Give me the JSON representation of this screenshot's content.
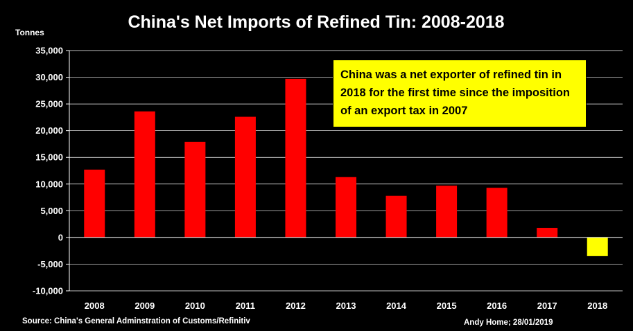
{
  "chart_data": {
    "type": "bar",
    "title": "China's Net Imports of Refined Tin: 2008-2018",
    "ylabel": "Tonnes",
    "xlabel": "",
    "categories": [
      "2008",
      "2009",
      "2010",
      "2011",
      "2012",
      "2013",
      "2014",
      "2015",
      "2016",
      "2017",
      "2018"
    ],
    "values": [
      12700,
      23600,
      17900,
      22600,
      29700,
      11300,
      7800,
      9700,
      9300,
      1800,
      -3500
    ],
    "ylim": [
      -10000,
      35000
    ],
    "yticks": [
      -10000,
      -5000,
      0,
      5000,
      10000,
      15000,
      20000,
      25000,
      30000,
      35000
    ],
    "ytick_labels": [
      "-10,000",
      "-5,000",
      "0",
      "5,000",
      "10,000",
      "15,000",
      "20,000",
      "25,000",
      "30,000",
      "35,000"
    ],
    "grid": true,
    "colors": {
      "positive": "#ff0000",
      "negative": "#ffff00",
      "background": "#000000",
      "grid": "#ffffff"
    },
    "annotation": "China was a net exporter of refined tin in 2018 for the first time since the imposition of an export tax in 2007"
  },
  "footer": {
    "source": "Source: China's General Adminstration of Customs/Refinitiv",
    "author": "Andy Home; 28/01/2019"
  }
}
